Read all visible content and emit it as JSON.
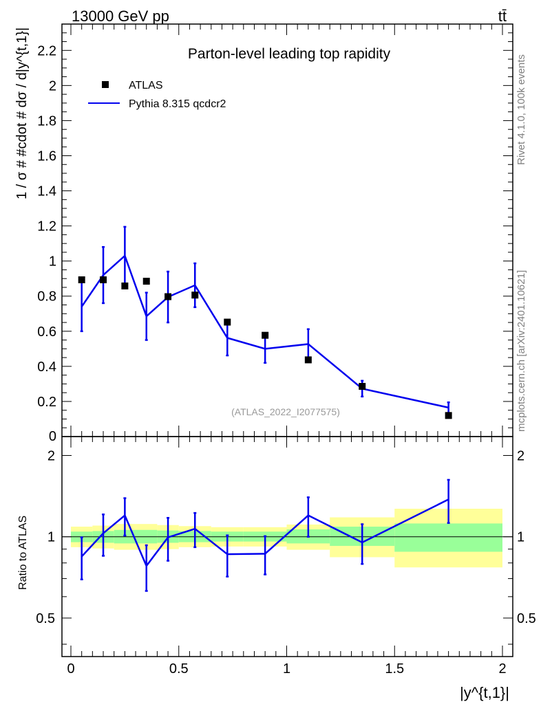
{
  "header": {
    "energy_label": "13000 GeV pp",
    "process_label": "tt̄"
  },
  "side_labels": {
    "rivet": "Rivet 4.1.0,  100k events",
    "mcplots": "mcplots.cern.ch [arXiv:2401.10621]"
  },
  "colors": {
    "data_marker": "#000000",
    "mc_line": "#0000ee",
    "band_inner": "#99ff99",
    "band_outer": "#ffff99",
    "watermark": "#999999"
  },
  "chart_data": [
    {
      "type": "scatter+line",
      "title": "Parton-level leading top rapidity",
      "watermark": "(ATLAS_2022_I2077575)",
      "xlabel": "|y^{t,1}|",
      "ylabel": "1 / σ # #cdot # dσ / d|y^{t,1}|",
      "xlim": [
        0,
        2
      ],
      "ylim": [
        0,
        2.35
      ],
      "y_ticks": [
        "0.2",
        "0.4",
        "0.6",
        "0.8",
        "1",
        "1.2",
        "1.4",
        "1.6",
        "1.8",
        "2",
        "2.2"
      ],
      "y_ticks_values": [
        0.2,
        0.4,
        0.6,
        0.8,
        1.0,
        1.2,
        1.4,
        1.6,
        1.8,
        2.0,
        2.2
      ],
      "y_tick_zero": "0",
      "legend": {
        "position": "top-left",
        "entries": [
          "ATLAS",
          "Pythia 8.315 qcdcr2"
        ]
      },
      "bin_edges": [
        0,
        0.1,
        0.2,
        0.3,
        0.4,
        0.5,
        0.65,
        0.8,
        1.0,
        1.2,
        1.5,
        2.0
      ],
      "x_centers": [
        0.05,
        0.15,
        0.25,
        0.35,
        0.45,
        0.575,
        0.725,
        0.9,
        1.1,
        1.35,
        1.75
      ],
      "series": [
        {
          "name": "ATLAS",
          "style": "markers",
          "values": [
            0.893,
            0.893,
            0.858,
            0.885,
            0.797,
            0.806,
            0.652,
            0.577,
            0.437,
            0.286,
            0.12
          ]
        },
        {
          "name": "Pythia 8.315 qcdcr2",
          "style": "line",
          "values": [
            0.74,
            0.92,
            1.03,
            0.685,
            0.795,
            0.862,
            0.562,
            0.5,
            0.527,
            0.273,
            0.165
          ],
          "err": [
            0.14,
            0.16,
            0.165,
            0.135,
            0.145,
            0.125,
            0.1,
            0.08,
            0.085,
            0.045,
            0.03
          ]
        }
      ]
    },
    {
      "type": "ratio",
      "ylabel": "Ratio to ATLAS",
      "ylim": [
        0.36,
        2.35
      ],
      "scale": "log",
      "y_ticks": [
        "0.5",
        "1",
        "2"
      ],
      "y_ticks_values": [
        0.5,
        1,
        2
      ],
      "x_ticks": [
        "0",
        "0.5",
        "1",
        "1.5",
        "2"
      ],
      "x_ticks_values": [
        0,
        0.5,
        1,
        1.5,
        2
      ],
      "band_inner": [
        [
          0.955,
          1.045
        ],
        [
          0.95,
          1.05
        ],
        [
          0.945,
          1.06
        ],
        [
          0.945,
          1.06
        ],
        [
          0.95,
          1.055
        ],
        [
          0.955,
          1.05
        ],
        [
          0.96,
          1.045
        ],
        [
          0.96,
          1.045
        ],
        [
          0.945,
          1.065
        ],
        [
          0.925,
          1.09
        ],
        [
          0.88,
          1.12
        ]
      ],
      "band_outer": [
        [
          0.915,
          1.09
        ],
        [
          0.905,
          1.1
        ],
        [
          0.895,
          1.115
        ],
        [
          0.895,
          1.115
        ],
        [
          0.9,
          1.105
        ],
        [
          0.915,
          1.095
        ],
        [
          0.92,
          1.085
        ],
        [
          0.92,
          1.085
        ],
        [
          0.895,
          1.11
        ],
        [
          0.84,
          1.18
        ],
        [
          0.77,
          1.27
        ]
      ],
      "ratio_values": [
        0.845,
        1.03,
        1.2,
        0.78,
        0.995,
        1.07,
        0.862,
        0.865,
        1.2,
        0.953,
        1.375
      ],
      "ratio_err": [
        0.15,
        0.18,
        0.19,
        0.15,
        0.18,
        0.155,
        0.15,
        0.14,
        0.2,
        0.16,
        0.25
      ]
    }
  ]
}
